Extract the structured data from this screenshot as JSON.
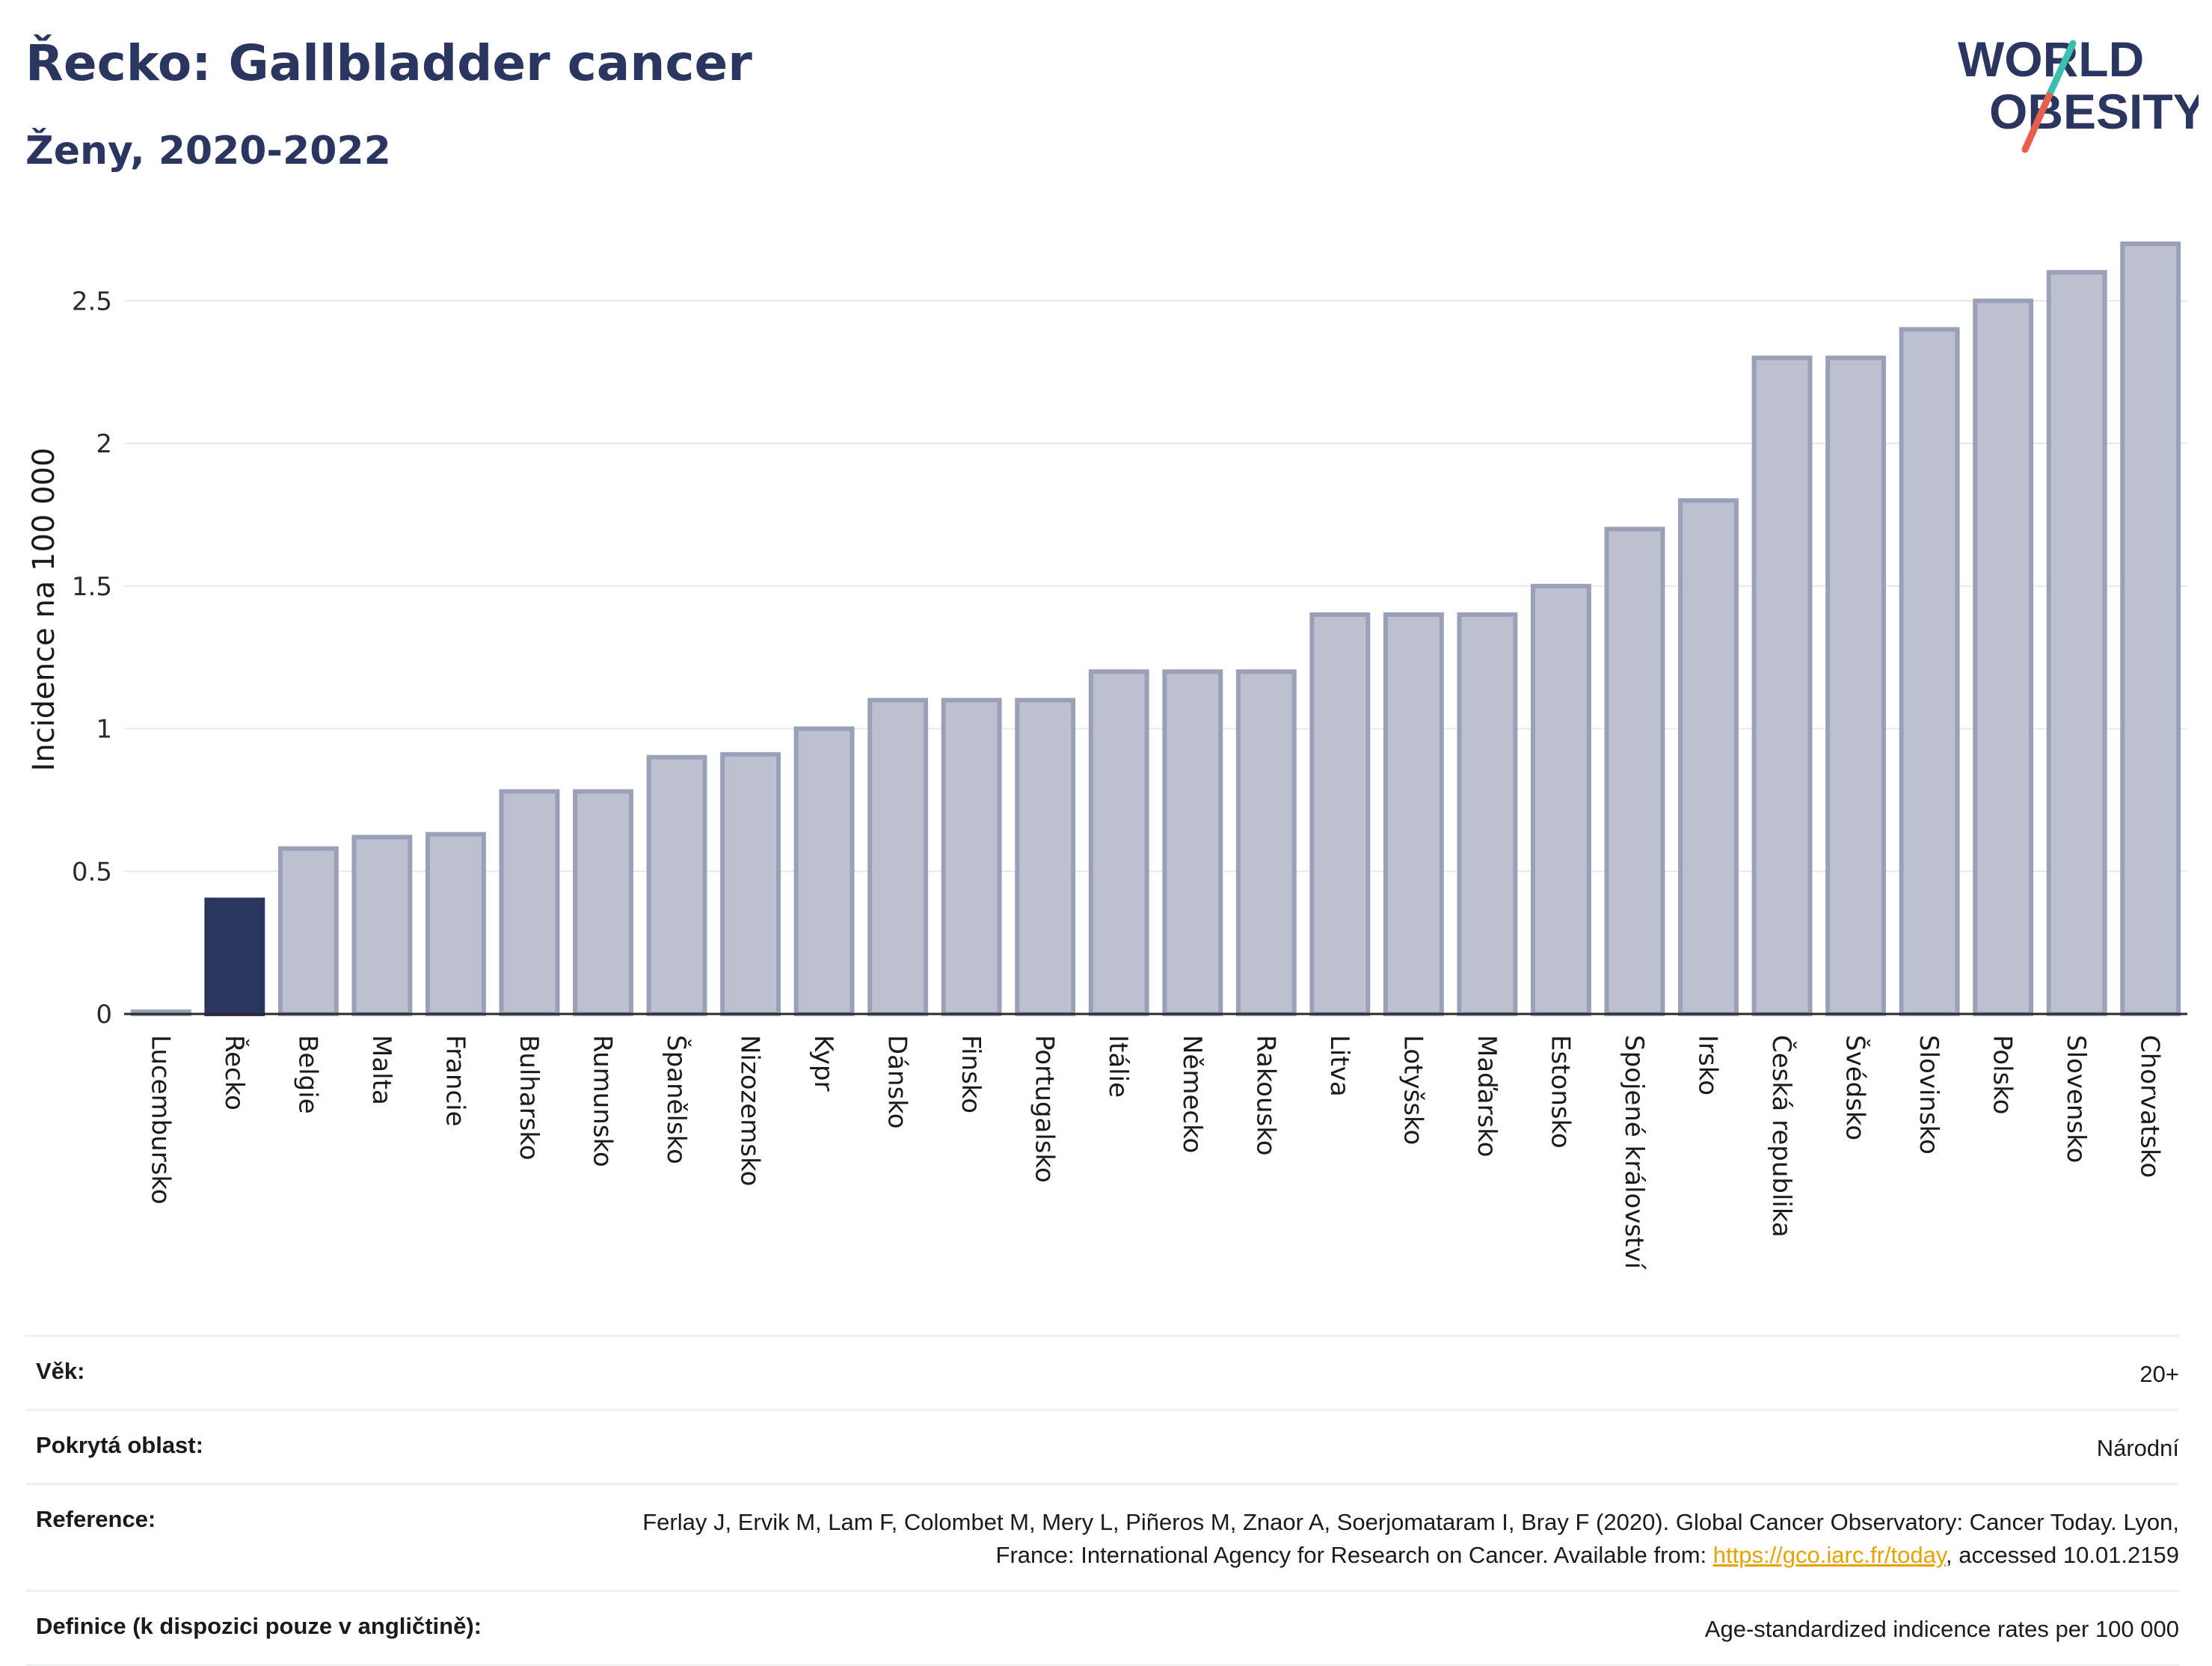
{
  "header": {
    "title": "Řecko: Gallbladder cancer",
    "subtitle": "Ženy, 2020-2022"
  },
  "logo": {
    "line1": "WORLD",
    "line2": "OBESITY",
    "accent_colors": [
      "#3cbfae",
      "#e8604c"
    ]
  },
  "colors": {
    "highlight_bar": "#2a3560",
    "bar_fill": "#bcc0cf",
    "bar_stroke": "#9aa0b8",
    "grid": "#e6e8ee",
    "axis": "#2a2a2a"
  },
  "chart_data": {
    "type": "bar",
    "title": "Řecko: Gallbladder cancer",
    "subtitle": "Ženy, 2020-2022",
    "ylabel": "Incidence na 100 000",
    "xlabel": "",
    "ylim": [
      0,
      2.7
    ],
    "yticks": [
      0,
      0.5,
      1,
      1.5,
      2,
      2.5
    ],
    "ytick_labels": [
      "0",
      "0.5",
      "1",
      "1.5",
      "2",
      "2.5"
    ],
    "grid": true,
    "highlight": "Řecko",
    "categories": [
      "Lucembursko",
      "Řecko",
      "Belgie",
      "Malta",
      "Francie",
      "Bulharsko",
      "Rumunsko",
      "Španělsko",
      "Nizozemsko",
      "Kypr",
      "Dánsko",
      "Finsko",
      "Portugalsko",
      "Itálie",
      "Německo",
      "Rakousko",
      "Litva",
      "Lotyšsko",
      "Maďarsko",
      "Estonsko",
      "Spojené království",
      "Irsko",
      "Česká republika",
      "Švédsko",
      "Slovinsko",
      "Polsko",
      "Slovensko",
      "Chorvatsko"
    ],
    "values": [
      0.0,
      0.4,
      0.58,
      0.62,
      0.63,
      0.78,
      0.78,
      0.9,
      0.91,
      1.0,
      1.1,
      1.1,
      1.1,
      1.2,
      1.2,
      1.2,
      1.4,
      1.4,
      1.4,
      1.5,
      1.7,
      1.8,
      2.3,
      2.3,
      2.4,
      2.5,
      2.6,
      2.7
    ]
  },
  "meta": [
    {
      "label": "Věk:",
      "value": "20+"
    },
    {
      "label": "Pokrytá oblast:",
      "value": "Národní"
    },
    {
      "label": "Reference:",
      "value_pre": "Ferlay J, Ervik M, Lam F, Colombet M, Mery L, Piñeros M, Znaor A, Soerjomataram I, Bray F (2020). Global Cancer Observatory: Cancer Today. Lyon, France: International Agency for Research on Cancer. Available from: ",
      "link": "https://gco.iarc.fr/today",
      "value_post": ", accessed 10.01.2159"
    },
    {
      "label": "Definice (k dispozici pouze v angličtině):",
      "value": "Age-standardized indicence rates per 100 000"
    }
  ]
}
